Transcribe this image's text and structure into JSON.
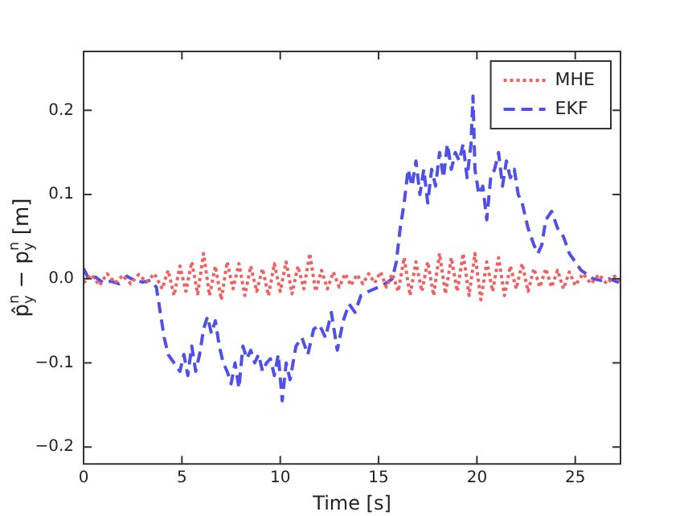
{
  "chart_data": {
    "type": "line",
    "xlabel": "Time [s]",
    "ylabel": "p̂$_{y}$$^{n}$ − p$_{y}$$^{n}$ [m]",
    "xlim": [
      0,
      27.3
    ],
    "ylim": [
      -0.22,
      0.27
    ],
    "xticks": [
      0,
      5,
      10,
      15,
      20,
      25
    ],
    "yticks": [
      {
        "value": -0.2,
        "label": "−0.2"
      },
      {
        "value": -0.1,
        "label": "−0.1"
      },
      {
        "value": 0,
        "label": "0.0"
      },
      0.1,
      0.2
    ],
    "grid": false,
    "legend": "top right",
    "marker": "none",
    "series": [
      {
        "name": "MHE",
        "color": "#f06060",
        "line_style": "dotted",
        "x": [
          0,
          0.4,
          0.8,
          1.2,
          1.6,
          2,
          2.4,
          2.8,
          3.2,
          3.6,
          4,
          4.3,
          4.6,
          4.9,
          5.2,
          5.5,
          5.8,
          6.1,
          6.4,
          6.7,
          7,
          7.3,
          7.6,
          7.9,
          8.2,
          8.5,
          8.8,
          9.1,
          9.4,
          9.7,
          10,
          10.3,
          10.6,
          10.9,
          11.2,
          11.5,
          11.8,
          12.1,
          12.4,
          12.7,
          13,
          13.3,
          13.6,
          13.9,
          14.2,
          14.5,
          14.8,
          15.1,
          15.4,
          15.7,
          16,
          16.3,
          16.6,
          16.9,
          17.2,
          17.5,
          17.8,
          18.1,
          18.4,
          18.7,
          19,
          19.3,
          19.6,
          19.9,
          20.2,
          20.5,
          20.8,
          21.1,
          21.4,
          21.7,
          22,
          22.3,
          22.6,
          22.9,
          23.2,
          23.5,
          23.8,
          24.1,
          24.4,
          24.7,
          25,
          25.4,
          25.8,
          26.2,
          26.6,
          27,
          27.3
        ],
        "values": [
          -0.005,
          0.005,
          -0.008,
          0.006,
          -0.005,
          0.004,
          -0.006,
          0.005,
          -0.004,
          0.006,
          -0.012,
          0.01,
          -0.02,
          0.015,
          -0.015,
          0.02,
          -0.018,
          0.03,
          -0.02,
          0.015,
          -0.025,
          0.02,
          -0.012,
          0.018,
          -0.02,
          0.015,
          -0.015,
          0.012,
          -0.02,
          0.018,
          -0.015,
          0.02,
          -0.018,
          0.015,
          -0.012,
          0.03,
          -0.015,
          0.01,
          -0.012,
          0.008,
          -0.01,
          0.006,
          -0.008,
          0.005,
          -0.006,
          0.006,
          -0.005,
          0.008,
          -0.01,
          0.006,
          -0.015,
          0.025,
          -0.02,
          0.02,
          -0.015,
          0.02,
          -0.02,
          0.03,
          -0.018,
          0.025,
          -0.015,
          0.03,
          -0.02,
          0.03,
          -0.025,
          0.02,
          -0.015,
          0.025,
          -0.02,
          0.015,
          -0.012,
          0.018,
          -0.015,
          0.012,
          -0.01,
          0.012,
          -0.01,
          0.01,
          -0.012,
          0.008,
          -0.008,
          0.006,
          -0.006,
          0.005,
          -0.006,
          0.003,
          -0.003
        ]
      },
      {
        "name": "EKF",
        "color": "#5050e8",
        "line_style": "dashed",
        "x": [
          0,
          0.3,
          0.6,
          1,
          1.4,
          1.8,
          2.2,
          2.6,
          3,
          3.4,
          3.7,
          3.9,
          4.1,
          4.3,
          4.6,
          4.9,
          5.1,
          5.3,
          5.5,
          5.7,
          5.9,
          6.1,
          6.3,
          6.5,
          6.7,
          6.9,
          7.1,
          7.3,
          7.5,
          7.7,
          7.9,
          8.1,
          8.3,
          8.5,
          8.7,
          8.9,
          9.1,
          9.3,
          9.5,
          9.7,
          9.9,
          10.1,
          10.3,
          10.5,
          10.8,
          11.1,
          11.4,
          11.7,
          12,
          12.3,
          12.6,
          12.9,
          13.2,
          13.5,
          13.8,
          14.1,
          14.5,
          15,
          15.4,
          15.7,
          15.9,
          16.1,
          16.3,
          16.5,
          16.7,
          16.9,
          17.1,
          17.3,
          17.5,
          17.7,
          17.9,
          18.1,
          18.3,
          18.5,
          18.7,
          18.9,
          19.1,
          19.3,
          19.5,
          19.7,
          19.8,
          19.9,
          20.1,
          20.3,
          20.5,
          20.7,
          20.9,
          21.1,
          21.3,
          21.5,
          21.7,
          21.9,
          22.1,
          22.3,
          22.6,
          22.9,
          23.1,
          23.3,
          23.5,
          23.8,
          24.1,
          24.4,
          24.7,
          25,
          25.3,
          25.6,
          25.9,
          26.3,
          26.7,
          27.3
        ],
        "values": [
          0.012,
          -0.002,
          0.002,
          -0.005,
          -0.003,
          -0.006,
          0.003,
          -0.002,
          -0.004,
          -0.002,
          -0.01,
          -0.04,
          -0.07,
          -0.09,
          -0.1,
          -0.11,
          -0.09,
          -0.115,
          -0.08,
          -0.11,
          -0.09,
          -0.06,
          -0.045,
          -0.065,
          -0.05,
          -0.08,
          -0.1,
          -0.11,
          -0.125,
          -0.1,
          -0.13,
          -0.08,
          -0.095,
          -0.085,
          -0.1,
          -0.09,
          -0.11,
          -0.1,
          -0.095,
          -0.115,
          -0.09,
          -0.145,
          -0.1,
          -0.12,
          -0.08,
          -0.07,
          -0.09,
          -0.06,
          -0.055,
          -0.07,
          -0.04,
          -0.085,
          -0.05,
          -0.03,
          -0.04,
          -0.02,
          -0.015,
          -0.01,
          -0.005,
          0.0,
          0.02,
          0.06,
          0.09,
          0.13,
          0.11,
          0.14,
          0.1,
          0.13,
          0.09,
          0.13,
          0.11,
          0.15,
          0.12,
          0.16,
          0.13,
          0.15,
          0.14,
          0.16,
          0.12,
          0.16,
          0.217,
          0.13,
          0.1,
          0.11,
          0.07,
          0.12,
          0.13,
          0.15,
          0.11,
          0.14,
          0.12,
          0.13,
          0.1,
          0.09,
          0.06,
          0.04,
          0.03,
          0.04,
          0.07,
          0.08,
          0.06,
          0.05,
          0.03,
          0.02,
          0.01,
          0.005,
          0.0,
          -0.002,
          0.0,
          -0.005
        ]
      }
    ]
  }
}
